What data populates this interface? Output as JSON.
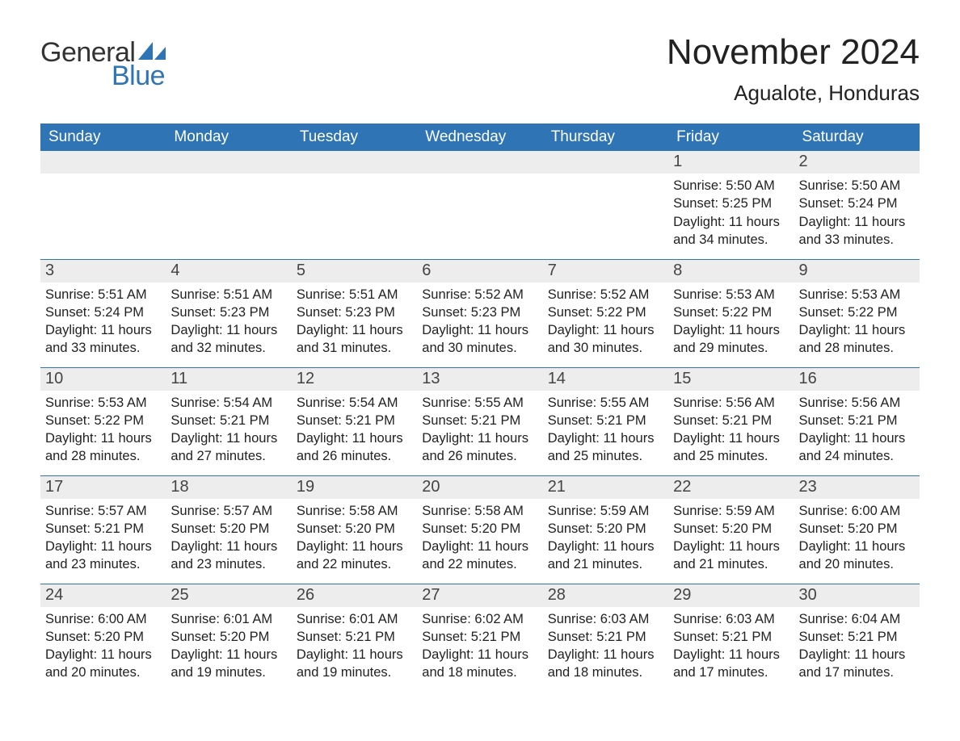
{
  "logo": {
    "text_general": "General",
    "text_blue": "Blue",
    "sail_color": "#2f74b5"
  },
  "colors": {
    "header_bg": "#2f74b5",
    "header_text": "#ffffff",
    "daynum_bg": "#ededed",
    "row_border": "#2f74b5",
    "body_text": "#222222",
    "page_bg": "#ffffff"
  },
  "title": "November 2024",
  "location": "Agualote, Honduras",
  "weekday_headers": [
    "Sunday",
    "Monday",
    "Tuesday",
    "Wednesday",
    "Thursday",
    "Friday",
    "Saturday"
  ],
  "weeks": [
    [
      null,
      null,
      null,
      null,
      null,
      {
        "n": "1",
        "sunrise": "Sunrise: 5:50 AM",
        "sunset": "Sunset: 5:25 PM",
        "day1": "Daylight: 11 hours",
        "day2": "and 34 minutes."
      },
      {
        "n": "2",
        "sunrise": "Sunrise: 5:50 AM",
        "sunset": "Sunset: 5:24 PM",
        "day1": "Daylight: 11 hours",
        "day2": "and 33 minutes."
      }
    ],
    [
      {
        "n": "3",
        "sunrise": "Sunrise: 5:51 AM",
        "sunset": "Sunset: 5:24 PM",
        "day1": "Daylight: 11 hours",
        "day2": "and 33 minutes."
      },
      {
        "n": "4",
        "sunrise": "Sunrise: 5:51 AM",
        "sunset": "Sunset: 5:23 PM",
        "day1": "Daylight: 11 hours",
        "day2": "and 32 minutes."
      },
      {
        "n": "5",
        "sunrise": "Sunrise: 5:51 AM",
        "sunset": "Sunset: 5:23 PM",
        "day1": "Daylight: 11 hours",
        "day2": "and 31 minutes."
      },
      {
        "n": "6",
        "sunrise": "Sunrise: 5:52 AM",
        "sunset": "Sunset: 5:23 PM",
        "day1": "Daylight: 11 hours",
        "day2": "and 30 minutes."
      },
      {
        "n": "7",
        "sunrise": "Sunrise: 5:52 AM",
        "sunset": "Sunset: 5:22 PM",
        "day1": "Daylight: 11 hours",
        "day2": "and 30 minutes."
      },
      {
        "n": "8",
        "sunrise": "Sunrise: 5:53 AM",
        "sunset": "Sunset: 5:22 PM",
        "day1": "Daylight: 11 hours",
        "day2": "and 29 minutes."
      },
      {
        "n": "9",
        "sunrise": "Sunrise: 5:53 AM",
        "sunset": "Sunset: 5:22 PM",
        "day1": "Daylight: 11 hours",
        "day2": "and 28 minutes."
      }
    ],
    [
      {
        "n": "10",
        "sunrise": "Sunrise: 5:53 AM",
        "sunset": "Sunset: 5:22 PM",
        "day1": "Daylight: 11 hours",
        "day2": "and 28 minutes."
      },
      {
        "n": "11",
        "sunrise": "Sunrise: 5:54 AM",
        "sunset": "Sunset: 5:21 PM",
        "day1": "Daylight: 11 hours",
        "day2": "and 27 minutes."
      },
      {
        "n": "12",
        "sunrise": "Sunrise: 5:54 AM",
        "sunset": "Sunset: 5:21 PM",
        "day1": "Daylight: 11 hours",
        "day2": "and 26 minutes."
      },
      {
        "n": "13",
        "sunrise": "Sunrise: 5:55 AM",
        "sunset": "Sunset: 5:21 PM",
        "day1": "Daylight: 11 hours",
        "day2": "and 26 minutes."
      },
      {
        "n": "14",
        "sunrise": "Sunrise: 5:55 AM",
        "sunset": "Sunset: 5:21 PM",
        "day1": "Daylight: 11 hours",
        "day2": "and 25 minutes."
      },
      {
        "n": "15",
        "sunrise": "Sunrise: 5:56 AM",
        "sunset": "Sunset: 5:21 PM",
        "day1": "Daylight: 11 hours",
        "day2": "and 25 minutes."
      },
      {
        "n": "16",
        "sunrise": "Sunrise: 5:56 AM",
        "sunset": "Sunset: 5:21 PM",
        "day1": "Daylight: 11 hours",
        "day2": "and 24 minutes."
      }
    ],
    [
      {
        "n": "17",
        "sunrise": "Sunrise: 5:57 AM",
        "sunset": "Sunset: 5:21 PM",
        "day1": "Daylight: 11 hours",
        "day2": "and 23 minutes."
      },
      {
        "n": "18",
        "sunrise": "Sunrise: 5:57 AM",
        "sunset": "Sunset: 5:20 PM",
        "day1": "Daylight: 11 hours",
        "day2": "and 23 minutes."
      },
      {
        "n": "19",
        "sunrise": "Sunrise: 5:58 AM",
        "sunset": "Sunset: 5:20 PM",
        "day1": "Daylight: 11 hours",
        "day2": "and 22 minutes."
      },
      {
        "n": "20",
        "sunrise": "Sunrise: 5:58 AM",
        "sunset": "Sunset: 5:20 PM",
        "day1": "Daylight: 11 hours",
        "day2": "and 22 minutes."
      },
      {
        "n": "21",
        "sunrise": "Sunrise: 5:59 AM",
        "sunset": "Sunset: 5:20 PM",
        "day1": "Daylight: 11 hours",
        "day2": "and 21 minutes."
      },
      {
        "n": "22",
        "sunrise": "Sunrise: 5:59 AM",
        "sunset": "Sunset: 5:20 PM",
        "day1": "Daylight: 11 hours",
        "day2": "and 21 minutes."
      },
      {
        "n": "23",
        "sunrise": "Sunrise: 6:00 AM",
        "sunset": "Sunset: 5:20 PM",
        "day1": "Daylight: 11 hours",
        "day2": "and 20 minutes."
      }
    ],
    [
      {
        "n": "24",
        "sunrise": "Sunrise: 6:00 AM",
        "sunset": "Sunset: 5:20 PM",
        "day1": "Daylight: 11 hours",
        "day2": "and 20 minutes."
      },
      {
        "n": "25",
        "sunrise": "Sunrise: 6:01 AM",
        "sunset": "Sunset: 5:20 PM",
        "day1": "Daylight: 11 hours",
        "day2": "and 19 minutes."
      },
      {
        "n": "26",
        "sunrise": "Sunrise: 6:01 AM",
        "sunset": "Sunset: 5:21 PM",
        "day1": "Daylight: 11 hours",
        "day2": "and 19 minutes."
      },
      {
        "n": "27",
        "sunrise": "Sunrise: 6:02 AM",
        "sunset": "Sunset: 5:21 PM",
        "day1": "Daylight: 11 hours",
        "day2": "and 18 minutes."
      },
      {
        "n": "28",
        "sunrise": "Sunrise: 6:03 AM",
        "sunset": "Sunset: 5:21 PM",
        "day1": "Daylight: 11 hours",
        "day2": "and 18 minutes."
      },
      {
        "n": "29",
        "sunrise": "Sunrise: 6:03 AM",
        "sunset": "Sunset: 5:21 PM",
        "day1": "Daylight: 11 hours",
        "day2": "and 17 minutes."
      },
      {
        "n": "30",
        "sunrise": "Sunrise: 6:04 AM",
        "sunset": "Sunset: 5:21 PM",
        "day1": "Daylight: 11 hours",
        "day2": "and 17 minutes."
      }
    ]
  ]
}
